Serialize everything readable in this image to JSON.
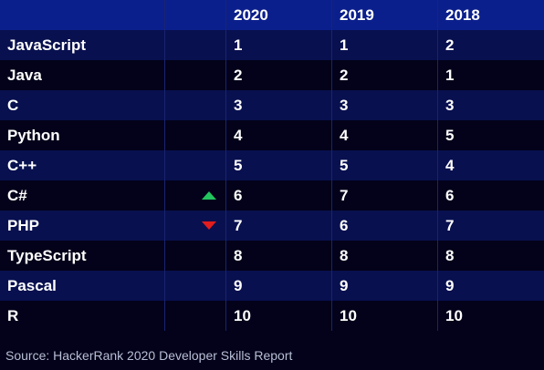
{
  "header": {
    "col_lang": "",
    "col_trend": "",
    "years": [
      "2020",
      "2019",
      "2018"
    ]
  },
  "rows": [
    {
      "lang": "JavaScript",
      "trend": "",
      "r2020": "1",
      "r2019": "1",
      "r2018": "2"
    },
    {
      "lang": "Java",
      "trend": "",
      "r2020": "2",
      "r2019": "2",
      "r2018": "1"
    },
    {
      "lang": "C",
      "trend": "",
      "r2020": "3",
      "r2019": "3",
      "r2018": "3"
    },
    {
      "lang": "Python",
      "trend": "",
      "r2020": "4",
      "r2019": "4",
      "r2018": "5"
    },
    {
      "lang": "C++",
      "trend": "",
      "r2020": "5",
      "r2019": "5",
      "r2018": "4"
    },
    {
      "lang": "C#",
      "trend": "up",
      "r2020": "6",
      "r2019": "7",
      "r2018": "6"
    },
    {
      "lang": "PHP",
      "trend": "down",
      "r2020": "7",
      "r2019": "6",
      "r2018": "7"
    },
    {
      "lang": "TypeScript",
      "trend": "",
      "r2020": "8",
      "r2019": "8",
      "r2018": "8"
    },
    {
      "lang": "Pascal",
      "trend": "",
      "r2020": "9",
      "r2019": "9",
      "r2018": "9"
    },
    {
      "lang": "R",
      "trend": "",
      "r2020": "10",
      "r2019": "10",
      "r2018": "10"
    }
  ],
  "source": "Source: HackerRank 2020 Developer Skills Report",
  "colors": {
    "header_bg": "#0b1f8c",
    "row_odd": "#08104f",
    "row_even": "#03021a",
    "up": "#22c55e",
    "down": "#e11d1d"
  }
}
